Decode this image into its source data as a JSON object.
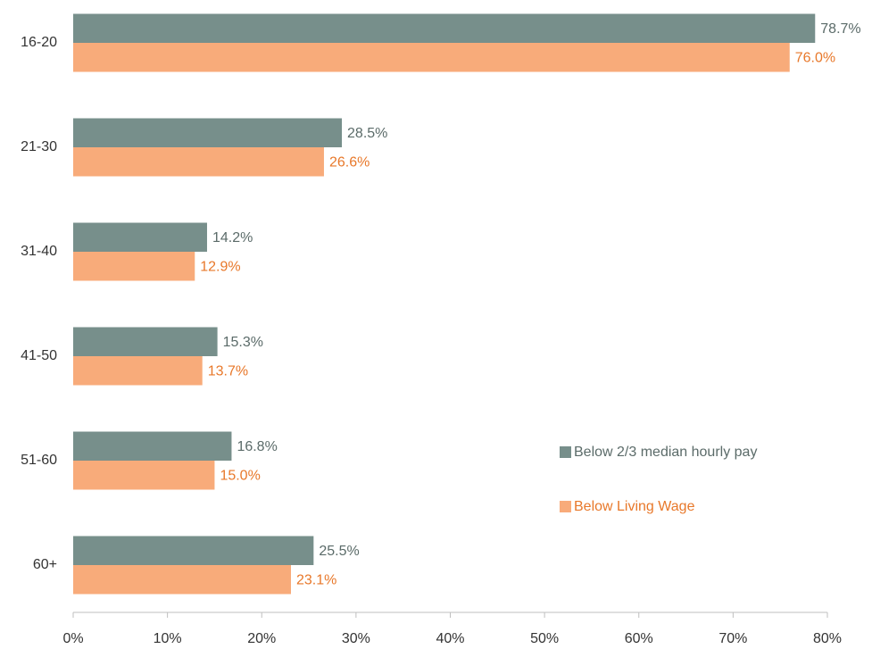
{
  "chart_data": {
    "type": "barh",
    "categories": [
      "16-20",
      "21-30",
      "31-40",
      "41-50",
      "51-60",
      "60+"
    ],
    "series": [
      {
        "name": "Below 2/3 median hourly pay",
        "color": "#778f8b",
        "label_color": "#5b6b69",
        "values": [
          78.7,
          28.5,
          14.2,
          15.3,
          16.8,
          25.5
        ],
        "value_labels": [
          "78.7%",
          "28.5%",
          "14.2%",
          "15.3%",
          "16.8%",
          "25.5%"
        ]
      },
      {
        "name": "Below Living Wage",
        "color": "#f8ab7a",
        "label_color": "#e8782a",
        "values": [
          76.0,
          26.6,
          12.9,
          13.7,
          15.0,
          23.1
        ],
        "value_labels": [
          "76.0%",
          "26.6%",
          "12.9%",
          "13.7%",
          "15.0%",
          "23.1%"
        ]
      }
    ],
    "xlim": [
      0,
      80
    ],
    "xticks": [
      {
        "value": 0,
        "label": "0%"
      },
      {
        "value": 10,
        "label": "10%"
      },
      {
        "value": 20,
        "label": "20%"
      },
      {
        "value": 30,
        "label": "30%"
      },
      {
        "value": 40,
        "label": "40%"
      },
      {
        "value": 50,
        "label": "50%"
      },
      {
        "value": 60,
        "label": "60%"
      },
      {
        "value": 70,
        "label": "70%"
      },
      {
        "value": 80,
        "label": "80%"
      }
    ],
    "legend": "lower right",
    "grid": false
  }
}
